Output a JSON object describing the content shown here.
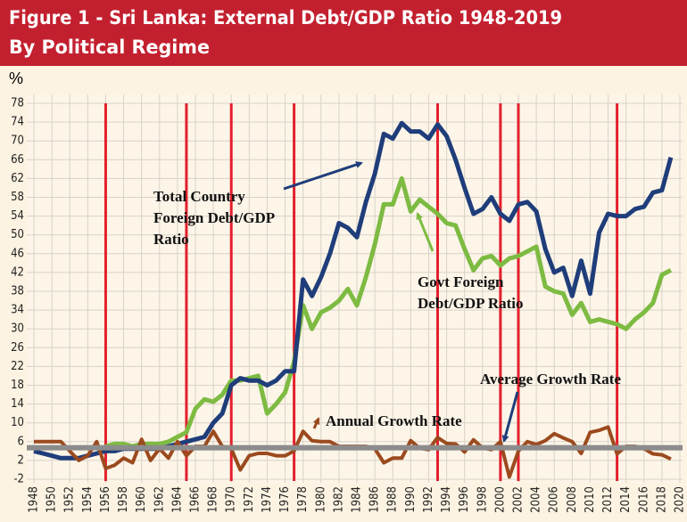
{
  "chart_data": {
    "type": "line",
    "title": [
      "Figure 1 - Sri Lanka: External Debt/GDP Ratio 1948-2019",
      "By Political Regime"
    ],
    "y_unit": "%",
    "x": [
      1948,
      1949,
      1950,
      1951,
      1952,
      1953,
      1954,
      1955,
      1956,
      1957,
      1958,
      1959,
      1960,
      1961,
      1962,
      1963,
      1964,
      1965,
      1966,
      1967,
      1968,
      1969,
      1970,
      1971,
      1972,
      1973,
      1974,
      1975,
      1976,
      1977,
      1978,
      1979,
      1980,
      1981,
      1982,
      1983,
      1984,
      1985,
      1986,
      1987,
      1988,
      1989,
      1990,
      1991,
      1992,
      1993,
      1994,
      1995,
      1996,
      1997,
      1998,
      1999,
      2000,
      2001,
      2002,
      2003,
      2004,
      2005,
      2006,
      2007,
      2008,
      2009,
      2010,
      2011,
      2012,
      2013,
      2014,
      2015,
      2016,
      2017,
      2018,
      2019
    ],
    "series": [
      {
        "label": [
          "Total Country",
          "Foreign Debt/GDP",
          "Ratio"
        ],
        "color": "#1f3d7a",
        "values": [
          4,
          3.5,
          3,
          2.5,
          2.5,
          2.5,
          3,
          3.5,
          4,
          4,
          4.5,
          4.5,
          4.5,
          4.5,
          4.5,
          5,
          5.5,
          6,
          6.5,
          7,
          10,
          12,
          18,
          19.5,
          19,
          19,
          18,
          19,
          21,
          21,
          40.5,
          37,
          41,
          46,
          52.5,
          51.5,
          49.5,
          57,
          63,
          71.5,
          70.5,
          73.8,
          72,
          72,
          70.5,
          73.5,
          71,
          66,
          60,
          54.5,
          55.5,
          58,
          54.5,
          53,
          56.5,
          57,
          55,
          47,
          42,
          43,
          37,
          44.5,
          37.5,
          50.5,
          54.5,
          54,
          54,
          55.5,
          56,
          59,
          59.5,
          66.5
        ]
      },
      {
        "label": [
          "Govt Foreign",
          "Debt/GDP Ratio"
        ],
        "color": "#7dbb42",
        "values": [
          null,
          null,
          null,
          null,
          null,
          null,
          null,
          null,
          5,
          5.5,
          5.5,
          5,
          5.5,
          5.5,
          5.5,
          6,
          7,
          8,
          13,
          15,
          14.5,
          16,
          19,
          19,
          19.5,
          20,
          12,
          14,
          16.5,
          23,
          35,
          30,
          33.5,
          34.5,
          36,
          38.5,
          35,
          41,
          48,
          56.5,
          56.5,
          62,
          55,
          57.5,
          56,
          54.5,
          52.5,
          52,
          47,
          42.5,
          45,
          45.5,
          43.5,
          45,
          45.5,
          46.5,
          47.5,
          39,
          38,
          37.5,
          33,
          35.5,
          31.5,
          32,
          31.5,
          31,
          30,
          32,
          33.5,
          35.5,
          41.5,
          42.5
        ]
      },
      {
        "label": [
          "Annual Growth Rate"
        ],
        "color": "#9b4a1e",
        "values": [
          6,
          6,
          6,
          6,
          4,
          2,
          3,
          6,
          0.3,
          1,
          2.5,
          1.5,
          6.5,
          2,
          4.5,
          2.5,
          6,
          3,
          5,
          5,
          8.2,
          5,
          4.5,
          0,
          3,
          3.5,
          3.5,
          3,
          3,
          4,
          8.2,
          6.2,
          6,
          6,
          5,
          5,
          5,
          5,
          4.5,
          1.5,
          2.5,
          2.5,
          6.2,
          4.6,
          4.3,
          6.9,
          5.6,
          5.5,
          3.8,
          6.4,
          4.7,
          4.3,
          6,
          -1.5,
          4,
          6,
          5.4,
          6.2,
          7.7,
          6.8,
          6,
          3.5,
          8,
          8.4,
          9.1,
          3.4,
          5,
          5,
          4.5,
          3.4,
          3.2,
          2.3
        ]
      }
    ],
    "average_growth": {
      "label": "Average Growth Rate",
      "value": 4.7,
      "color": "#8c8c8c"
    },
    "regime_changes": {
      "color": "#e3202b",
      "x": [
        1956,
        1965,
        1970,
        1977,
        1993,
        2000,
        2002,
        2013
      ]
    },
    "xlim": [
      1948,
      2020
    ],
    "xticks": [
      1948,
      1950,
      1952,
      1954,
      1956,
      1958,
      1960,
      1962,
      1964,
      1966,
      1968,
      1970,
      1972,
      1974,
      1976,
      1978,
      1980,
      1982,
      1984,
      1986,
      1988,
      1990,
      1992,
      1994,
      1996,
      1998,
      2000,
      2002,
      2004,
      2006,
      2008,
      2010,
      2012,
      2014,
      2016,
      2018,
      2020
    ],
    "ylim": [
      -2,
      78
    ],
    "yticks": [
      -2,
      2,
      6,
      10,
      14,
      18,
      22,
      26,
      30,
      34,
      38,
      42,
      46,
      50,
      54,
      58,
      62,
      66,
      70,
      74,
      78
    ],
    "grid": true
  }
}
